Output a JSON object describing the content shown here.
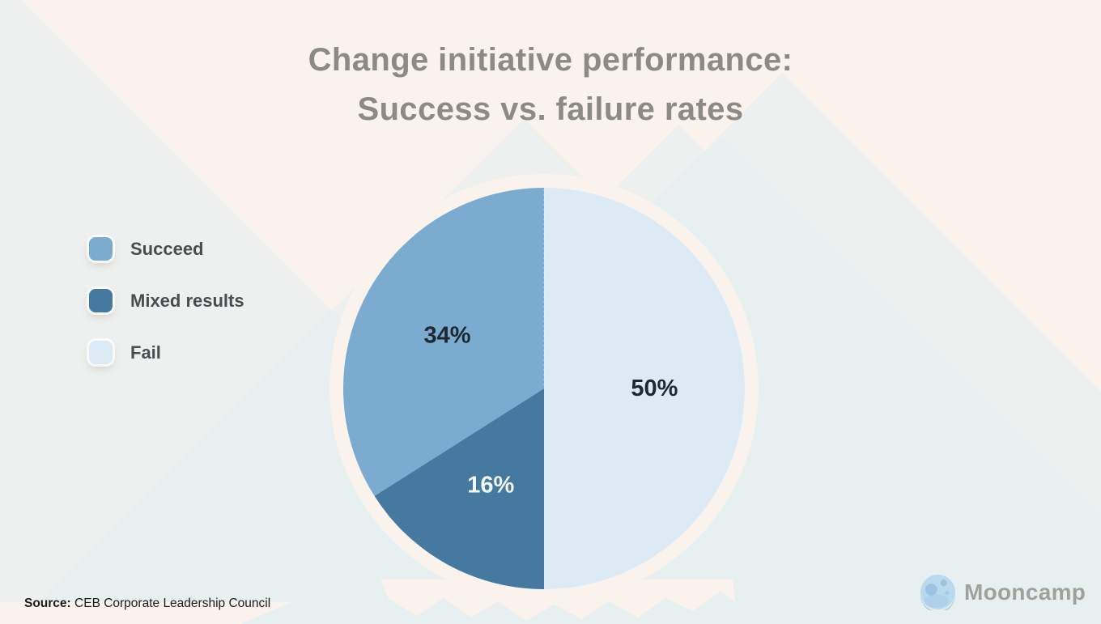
{
  "title": {
    "line1": "Change initiative performance:",
    "line2": "Success vs. failure rates"
  },
  "chart_data": {
    "type": "pie",
    "title": "Change initiative performance: Success vs. failure rates",
    "slices": [
      {
        "label": "Succeed",
        "value": 34,
        "display": "34%",
        "color": "#7BACCF",
        "label_color": "#1E2832"
      },
      {
        "label": "Mixed results",
        "value": 16,
        "display": "16%",
        "color": "#45799F",
        "label_color": "#F3F7F6"
      },
      {
        "label": "Fail",
        "value": 50,
        "display": "50%",
        "color": "#DBEAF5",
        "label_color": "#1E2832"
      }
    ],
    "start_angle": "12-oclock",
    "direction": "counterclockwise",
    "legend_position": "left",
    "data_labels": "percent-inside"
  },
  "source": {
    "prefix": "Source:",
    "text": "CEB Corporate Leadership Council"
  },
  "brand": {
    "name": "Mooncamp",
    "icon": "moon-icon"
  },
  "theme": {
    "background": "#FAF2EC",
    "mountain_tint": "#E7EEF0",
    "title_color": "#8B8A85",
    "legend_text_color": "#4B4C50"
  }
}
